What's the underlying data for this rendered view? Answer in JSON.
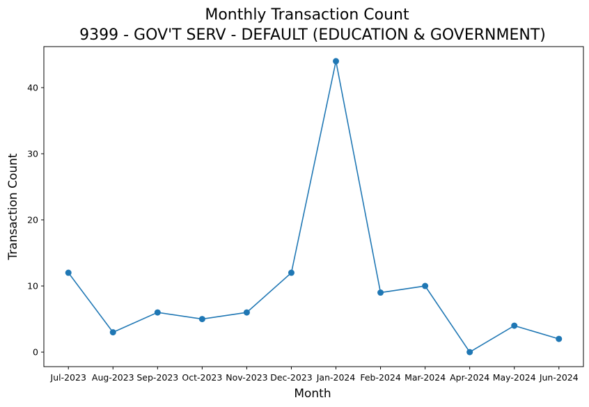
{
  "chart_data": {
    "type": "line",
    "title": "Monthly Transaction Count",
    "subtitle": "9399 - GOV'T SERV - DEFAULT (EDUCATION & GOVERNMENT)",
    "xlabel": "Month",
    "ylabel": "Transaction Count",
    "categories": [
      "Jul-2023",
      "Aug-2023",
      "Sep-2023",
      "Oct-2023",
      "Nov-2023",
      "Dec-2023",
      "Jan-2024",
      "Feb-2024",
      "Mar-2024",
      "Apr-2024",
      "May-2024",
      "Jun-2024"
    ],
    "series": [
      {
        "values": [
          12,
          3,
          6,
          5,
          6,
          12,
          44,
          9,
          10,
          0,
          4,
          2
        ],
        "color": "#1f77b4"
      }
    ],
    "ylim": [
      -2.2,
      46.2
    ],
    "yticks": [
      0,
      10,
      20,
      30,
      40
    ],
    "grid": false,
    "legend": "none"
  }
}
